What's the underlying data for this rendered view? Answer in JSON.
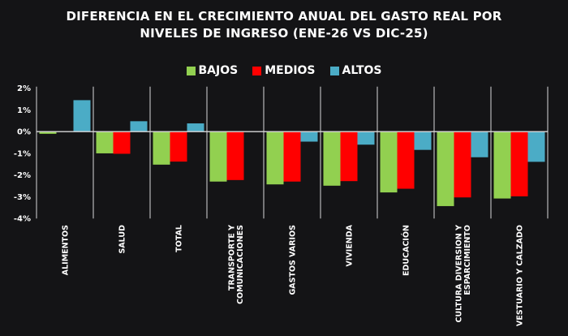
{
  "chart_data": {
    "type": "bar",
    "title": [
      "DIFERENCIA EN EL CRECIMIENTO ANUAL DEL GASTO REAL POR",
      "NIVELES DE INGRESO (ENE-26 VS DIC-25)"
    ],
    "categories": [
      [
        "ALIMENTOS"
      ],
      [
        "SALUD"
      ],
      [
        "TOTAL"
      ],
      [
        "TRANSPORTE Y",
        "COMUNICACIONES"
      ],
      [
        "GASTOS VARIOS"
      ],
      [
        "VIVIENDA"
      ],
      [
        "EDUCACIÓN"
      ],
      [
        "CULTURA DIVERSION Y",
        "ESPARCIMIENTO"
      ],
      [
        "VESTUARIO Y CALZADO"
      ]
    ],
    "series": [
      {
        "name": "BAJOS",
        "color": "#92d050",
        "values": [
          -0.1,
          -1.0,
          -1.52,
          -2.3,
          -2.43,
          -2.49,
          -2.8,
          -3.43,
          -3.08
        ]
      },
      {
        "name": "MEDIOS",
        "color": "#ff0000",
        "values": [
          0.0,
          -1.02,
          -1.38,
          -2.23,
          -2.3,
          -2.28,
          -2.63,
          -3.03,
          -2.98
        ]
      },
      {
        "name": "ALTOS",
        "color": "#4bacc6",
        "values": [
          1.45,
          0.48,
          0.38,
          0.0,
          -0.46,
          -0.6,
          -0.84,
          -1.18,
          -1.39
        ]
      }
    ],
    "ylim": [
      -4,
      2
    ],
    "yticks": [
      2,
      1,
      0,
      -1,
      -2,
      -3,
      -4
    ],
    "ytick_labels": [
      "2%",
      "1%",
      "0%",
      "-1%",
      "-2%",
      "-3%",
      "-4%"
    ],
    "legend_position": "top",
    "grid": false
  }
}
